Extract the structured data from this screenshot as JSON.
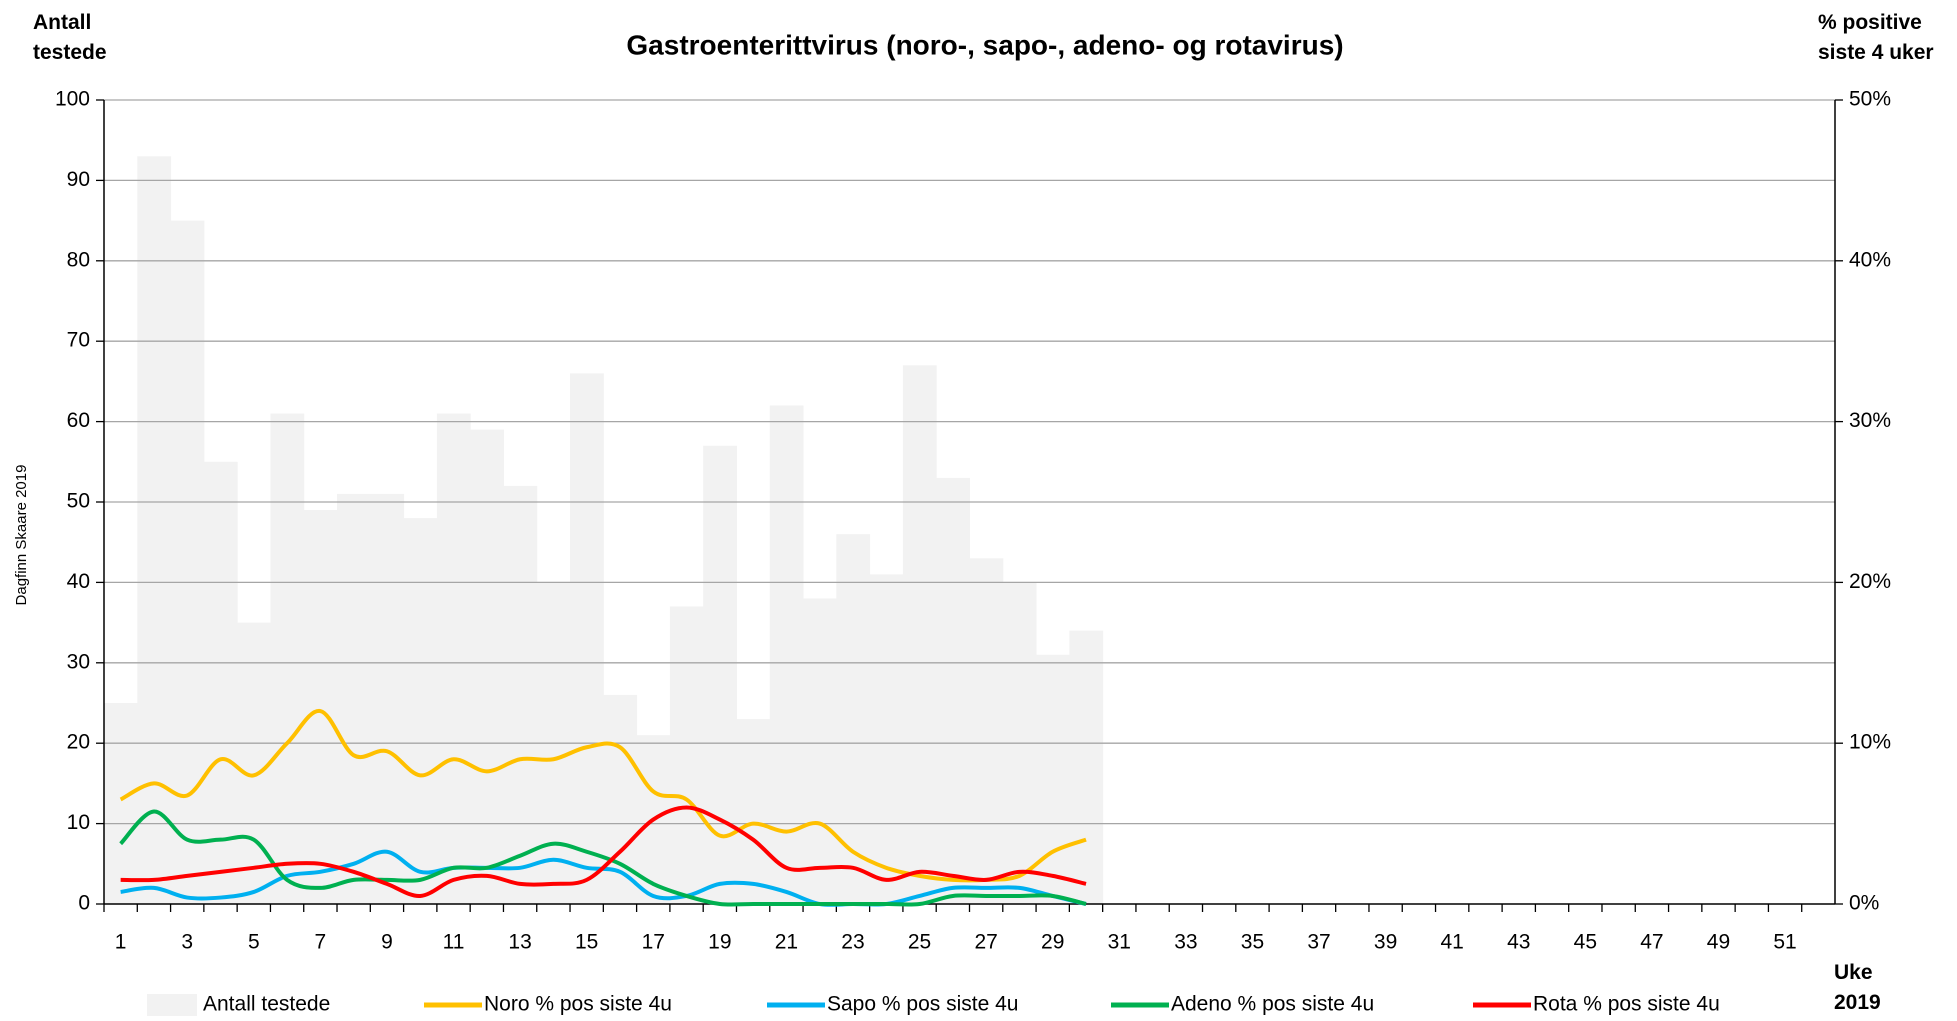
{
  "chart_data": {
    "type": "bar",
    "title": "Gastroenterittvirus (noro-, sapo-, adeno- og rotavirus)",
    "ylabel": "Antall testede",
    "y2label": "% positive siste 4 uker",
    "xlabel": "Uke 2019",
    "annotation": "Dagfinn Skaare 2019",
    "x": [
      1,
      2,
      3,
      4,
      5,
      6,
      7,
      8,
      9,
      10,
      11,
      12,
      13,
      14,
      15,
      16,
      17,
      18,
      19,
      20,
      21,
      22,
      23,
      24,
      25,
      26,
      27,
      28,
      29,
      30,
      31,
      32,
      33,
      34,
      35,
      36,
      37,
      38,
      39,
      40,
      41,
      42,
      43,
      44,
      45,
      46,
      47,
      48,
      49,
      50,
      51,
      52
    ],
    "xlim": [
      0.5,
      52.5
    ],
    "xticks": [
      1,
      3,
      5,
      7,
      9,
      11,
      13,
      15,
      17,
      19,
      21,
      23,
      25,
      27,
      29,
      31,
      33,
      35,
      37,
      39,
      41,
      43,
      45,
      47,
      49,
      51
    ],
    "ylim": [
      0,
      100
    ],
    "yticks": [
      0,
      10,
      20,
      30,
      40,
      50,
      60,
      70,
      80,
      90,
      100
    ],
    "y2lim": [
      0,
      50
    ],
    "y2ticks": [
      {
        "value": 0,
        "label": "0%"
      },
      {
        "value": 10,
        "label": "10%"
      },
      {
        "value": 20,
        "label": "20%"
      },
      {
        "value": 30,
        "label": "30%"
      },
      {
        "value": 40,
        "label": "40%"
      },
      {
        "value": 50,
        "label": "50%"
      }
    ],
    "grid": true,
    "series": [
      {
        "name": "Antall testede",
        "type": "bar",
        "color": "#f2f2f2",
        "values": [
          25,
          93,
          85,
          55,
          35,
          61,
          49,
          51,
          51,
          48,
          61,
          59,
          52,
          40,
          66,
          26,
          21,
          37,
          57,
          23,
          62,
          38,
          46,
          41,
          67,
          53,
          43,
          40,
          31,
          34,
          null,
          null,
          null,
          null,
          null,
          null,
          null,
          null,
          null,
          null,
          null,
          null,
          null,
          null,
          null,
          null,
          null,
          null,
          null,
          null,
          null,
          null
        ]
      },
      {
        "name": "Noro % pos siste 4u",
        "type": "line",
        "axis": "y2",
        "color": "#ffc000",
        "values": [
          6.5,
          7.5,
          6.75,
          9,
          8,
          10,
          12,
          9.25,
          9.5,
          8,
          9,
          8.25,
          9,
          9,
          9.75,
          9.75,
          7,
          6.5,
          4.25,
          5,
          4.5,
          5,
          3.25,
          2.25,
          1.75,
          1.5,
          1.5,
          1.75,
          3.25,
          4,
          null,
          null,
          null,
          null,
          null,
          null,
          null,
          null,
          null,
          null,
          null,
          null,
          null,
          null,
          null,
          null,
          null,
          null,
          null,
          null,
          null,
          null
        ]
      },
      {
        "name": "Sapo % pos siste 4u",
        "type": "line",
        "axis": "y2",
        "color": "#00b0f0",
        "values": [
          0.75,
          1,
          0.4,
          0.4,
          0.75,
          1.75,
          2,
          2.5,
          3.25,
          2,
          2.25,
          2.25,
          2.25,
          2.75,
          2.25,
          2,
          0.5,
          0.5,
          1.25,
          1.25,
          0.75,
          0,
          0,
          0,
          0.5,
          1,
          1,
          1,
          0.5,
          0,
          null,
          null,
          null,
          null,
          null,
          null,
          null,
          null,
          null,
          null,
          null,
          null,
          null,
          null,
          null,
          null,
          null,
          null,
          null,
          null,
          null,
          null
        ]
      },
      {
        "name": "Adeno % pos siste 4u",
        "type": "line",
        "axis": "y2",
        "color": "#00b050",
        "values": [
          3.75,
          5.75,
          4,
          4,
          4,
          1.5,
          1,
          1.5,
          1.5,
          1.5,
          2.25,
          2.25,
          3,
          3.75,
          3.25,
          2.5,
          1.25,
          0.5,
          0,
          0,
          0,
          0,
          0,
          0,
          0,
          0.5,
          0.5,
          0.5,
          0.5,
          0,
          null,
          null,
          null,
          null,
          null,
          null,
          null,
          null,
          null,
          null,
          null,
          null,
          null,
          null,
          null,
          null,
          null,
          null,
          null,
          null,
          null,
          null
        ]
      },
      {
        "name": "Rota % pos siste 4u",
        "type": "line",
        "axis": "y2",
        "color": "#ff0000",
        "values": [
          1.5,
          1.5,
          1.75,
          2,
          2.25,
          2.5,
          2.5,
          2,
          1.25,
          0.5,
          1.5,
          1.75,
          1.25,
          1.25,
          1.5,
          3.25,
          5.25,
          6,
          5.25,
          4,
          2.25,
          2.25,
          2.25,
          1.5,
          2,
          1.75,
          1.5,
          2,
          1.75,
          1.25,
          null,
          null,
          null,
          null,
          null,
          null,
          null,
          null,
          null,
          null,
          null,
          null,
          null,
          null,
          null,
          null,
          null,
          null,
          null,
          null,
          null,
          null
        ]
      }
    ]
  }
}
